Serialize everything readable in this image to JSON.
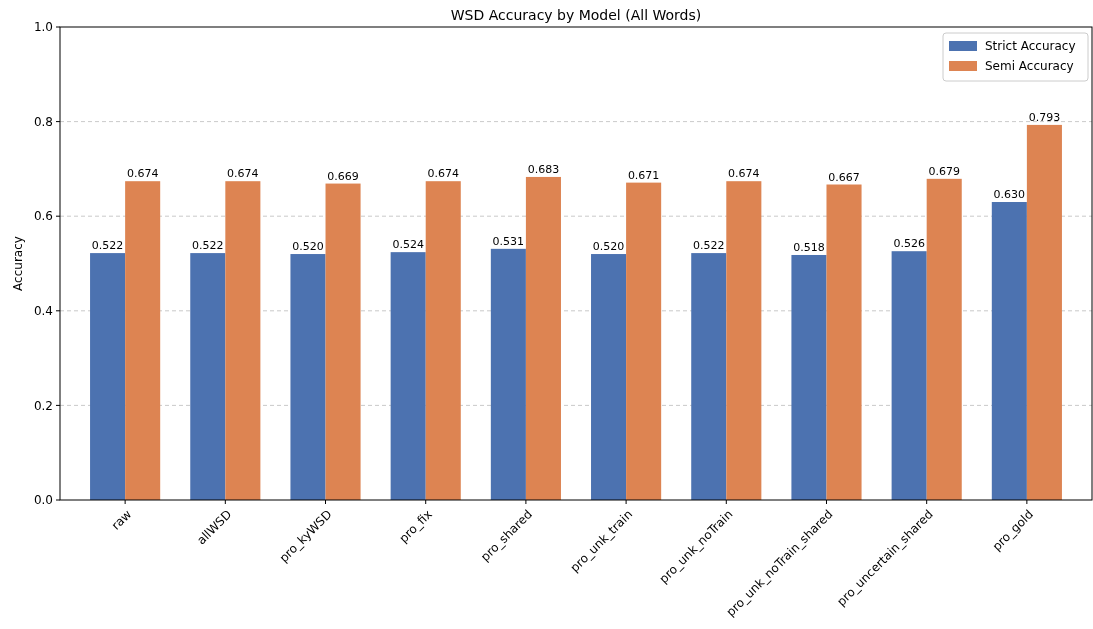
{
  "chart_data": {
    "type": "bar",
    "title": "WSD Accuracy by Model (All Words)",
    "ylabel": "Accuracy",
    "categories": [
      "raw",
      "allWSD",
      "pro_kyWSD",
      "pro_fix",
      "pro_shared",
      "pro_unk_train",
      "pro_unk_noTrain",
      "pro_unk_noTrain_shared",
      "pro_uncertain_shared",
      "pro_gold"
    ],
    "series": [
      {
        "name": "Strict Accuracy",
        "color": "#4c72b0",
        "values": [
          0.522,
          0.522,
          0.52,
          0.524,
          0.531,
          0.52,
          0.522,
          0.518,
          0.526,
          0.63
        ],
        "value_labels": [
          "0.522",
          "0.522",
          "0.520",
          "0.524",
          "0.531",
          "0.520",
          "0.522",
          "0.518",
          "0.526",
          "0.630"
        ]
      },
      {
        "name": "Semi Accuracy",
        "color": "#dd8452",
        "values": [
          0.674,
          0.674,
          0.669,
          0.674,
          0.683,
          0.671,
          0.674,
          0.667,
          0.679,
          0.793
        ],
        "value_labels": [
          "0.674",
          "0.674",
          "0.669",
          "0.674",
          "0.683",
          "0.671",
          "0.674",
          "0.667",
          "0.679",
          "0.793"
        ]
      }
    ],
    "ylim": [
      0,
      1
    ],
    "yticks": [
      {
        "value": 0,
        "label": "0.0"
      },
      {
        "value": 0.2,
        "label": "0.2"
      },
      {
        "value": 0.4,
        "label": "0.4"
      },
      {
        "value": 0.6,
        "label": "0.6"
      },
      {
        "value": 0.8,
        "label": "0.8"
      },
      {
        "value": 1,
        "label": "1.0"
      }
    ],
    "grid": "y",
    "legend": "top right"
  }
}
